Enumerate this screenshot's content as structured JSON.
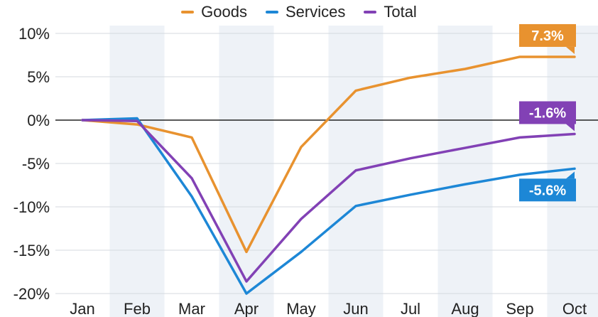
{
  "chart_data": {
    "type": "line",
    "categories": [
      "Jan",
      "Feb",
      "Mar",
      "Apr",
      "May",
      "Jun",
      "Jul",
      "Aug",
      "Sep",
      "Oct"
    ],
    "ylim": [
      -20,
      10
    ],
    "yticks": [
      10,
      5,
      0,
      -5,
      -10,
      -15,
      -20
    ],
    "ytick_labels": [
      "10%",
      "5%",
      "0%",
      "-5%",
      "-10%",
      "-15%",
      "-20%"
    ],
    "legend_position": "top-center",
    "grid": true,
    "series": [
      {
        "name": "Goods",
        "color": "#e8922f",
        "values": [
          0,
          -0.5,
          -2.0,
          -15.2,
          -3.1,
          3.4,
          4.9,
          5.9,
          7.3,
          7.3
        ],
        "end_label": "7.3%"
      },
      {
        "name": "Services",
        "color": "#1d87d6",
        "values": [
          0,
          0.2,
          -8.8,
          -20.0,
          -15.2,
          -9.9,
          -8.6,
          -7.4,
          -6.3,
          -5.6
        ],
        "end_label": "-5.6%"
      },
      {
        "name": "Total",
        "color": "#8241b5",
        "values": [
          0,
          -0.1,
          -6.7,
          -18.6,
          -11.4,
          -5.8,
          -4.4,
          -3.2,
          -2.0,
          -1.6
        ],
        "end_label": "-1.6%"
      }
    ]
  }
}
